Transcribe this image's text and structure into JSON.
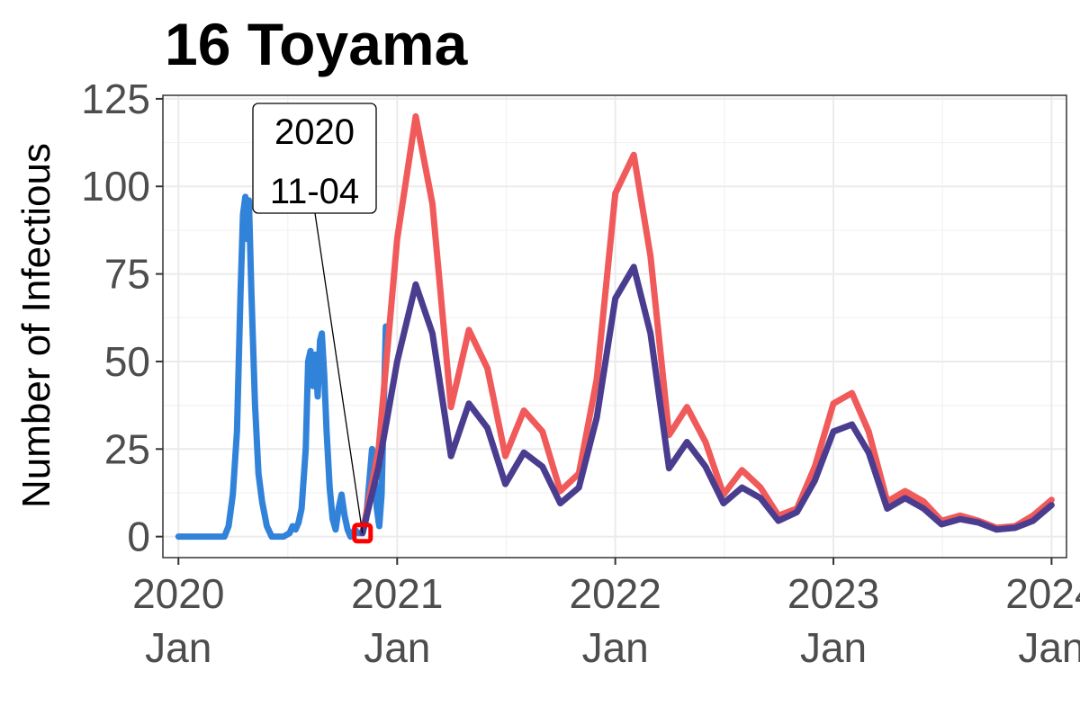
{
  "chart_data": {
    "type": "line",
    "title": "16 Toyama",
    "xlabel": "",
    "ylabel": "Number of Infectious",
    "x_range": [
      "2019-12-06",
      "2024-01-26"
    ],
    "ylim": [
      -6,
      126
    ],
    "yticks": [
      0,
      25,
      50,
      75,
      100,
      125
    ],
    "xticks": [
      {
        "date": "2020-01-01",
        "year": "2020",
        "month": "Jan"
      },
      {
        "date": "2021-01-01",
        "year": "2021",
        "month": "Jan"
      },
      {
        "date": "2022-01-01",
        "year": "2022",
        "month": "Jan"
      },
      {
        "date": "2023-01-01",
        "year": "2023",
        "month": "Jan"
      },
      {
        "date": "2024-01-01",
        "year": "2024",
        "month": "Jan"
      }
    ],
    "grid": true,
    "legend": "none",
    "annotation": {
      "date": "2020-11-04",
      "value": 1,
      "line1": "2020",
      "line2": "11-04",
      "marker_color": "#ff0000"
    },
    "series": [
      {
        "color": "#3182d9",
        "points": [
          [
            "2020-01-01",
            0
          ],
          [
            "2020-02-01",
            0
          ],
          [
            "2020-03-01",
            0
          ],
          [
            "2020-03-18",
            0
          ],
          [
            "2020-03-25",
            3
          ],
          [
            "2020-04-01",
            12
          ],
          [
            "2020-04-08",
            30
          ],
          [
            "2020-04-14",
            70
          ],
          [
            "2020-04-18",
            92
          ],
          [
            "2020-04-22",
            97
          ],
          [
            "2020-04-25",
            85
          ],
          [
            "2020-04-28",
            96
          ],
          [
            "2020-05-02",
            70
          ],
          [
            "2020-05-08",
            38
          ],
          [
            "2020-05-14",
            18
          ],
          [
            "2020-05-20",
            10
          ],
          [
            "2020-05-28",
            3
          ],
          [
            "2020-06-05",
            0
          ],
          [
            "2020-06-25",
            0
          ],
          [
            "2020-07-05",
            1
          ],
          [
            "2020-07-10",
            3
          ],
          [
            "2020-07-15",
            2
          ],
          [
            "2020-07-20",
            4
          ],
          [
            "2020-07-25",
            8
          ],
          [
            "2020-08-01",
            25
          ],
          [
            "2020-08-05",
            50
          ],
          [
            "2020-08-09",
            53
          ],
          [
            "2020-08-13",
            43
          ],
          [
            "2020-08-17",
            52
          ],
          [
            "2020-08-21",
            40
          ],
          [
            "2020-08-25",
            56
          ],
          [
            "2020-08-28",
            58
          ],
          [
            "2020-09-01",
            46
          ],
          [
            "2020-09-05",
            30
          ],
          [
            "2020-09-10",
            14
          ],
          [
            "2020-09-15",
            5
          ],
          [
            "2020-09-20",
            2
          ],
          [
            "2020-09-25",
            8
          ],
          [
            "2020-09-30",
            12
          ],
          [
            "2020-10-05",
            6
          ],
          [
            "2020-10-10",
            2
          ],
          [
            "2020-10-15",
            0
          ],
          [
            "2020-10-22",
            2
          ],
          [
            "2020-10-28",
            1
          ],
          [
            "2020-11-04",
            1
          ],
          [
            "2020-11-10",
            5
          ],
          [
            "2020-11-15",
            15
          ],
          [
            "2020-11-20",
            25
          ],
          [
            "2020-11-24",
            20
          ],
          [
            "2020-11-28",
            8
          ],
          [
            "2020-12-02",
            3
          ],
          [
            "2020-12-06",
            12
          ],
          [
            "2020-12-10",
            40
          ],
          [
            "2020-12-13",
            60
          ]
        ]
      },
      {
        "color": "#f05a5a",
        "points": [
          [
            "2020-11-04",
            1
          ],
          [
            "2020-12-01",
            25
          ],
          [
            "2021-01-01",
            85
          ],
          [
            "2021-02-01",
            120
          ],
          [
            "2021-03-01",
            95
          ],
          [
            "2021-04-01",
            37
          ],
          [
            "2021-05-01",
            59
          ],
          [
            "2021-06-01",
            48
          ],
          [
            "2021-07-01",
            23
          ],
          [
            "2021-08-01",
            36
          ],
          [
            "2021-09-01",
            30
          ],
          [
            "2021-10-01",
            13
          ],
          [
            "2021-11-01",
            18
          ],
          [
            "2021-12-01",
            45
          ],
          [
            "2022-01-01",
            98
          ],
          [
            "2022-02-01",
            109
          ],
          [
            "2022-03-01",
            80
          ],
          [
            "2022-04-01",
            29
          ],
          [
            "2022-05-01",
            37
          ],
          [
            "2022-06-01",
            27
          ],
          [
            "2022-07-01",
            12
          ],
          [
            "2022-08-01",
            19
          ],
          [
            "2022-09-01",
            14
          ],
          [
            "2022-10-01",
            6
          ],
          [
            "2022-11-01",
            8
          ],
          [
            "2022-12-01",
            20
          ],
          [
            "2023-01-01",
            38
          ],
          [
            "2023-02-01",
            41
          ],
          [
            "2023-03-01",
            30
          ],
          [
            "2023-04-01",
            10
          ],
          [
            "2023-05-01",
            13
          ],
          [
            "2023-06-01",
            10
          ],
          [
            "2023-07-01",
            4.5
          ],
          [
            "2023-08-01",
            6
          ],
          [
            "2023-09-01",
            4.5
          ],
          [
            "2023-10-01",
            2.5
          ],
          [
            "2023-11-01",
            3
          ],
          [
            "2023-12-01",
            6
          ],
          [
            "2024-01-01",
            10.5
          ]
        ]
      },
      {
        "color": "#4a3d8f",
        "points": [
          [
            "2020-11-04",
            1
          ],
          [
            "2020-12-01",
            20
          ],
          [
            "2021-01-01",
            50
          ],
          [
            "2021-02-01",
            72
          ],
          [
            "2021-03-01",
            58
          ],
          [
            "2021-04-01",
            23
          ],
          [
            "2021-05-01",
            38
          ],
          [
            "2021-06-01",
            31
          ],
          [
            "2021-07-01",
            15
          ],
          [
            "2021-08-01",
            24
          ],
          [
            "2021-09-01",
            20
          ],
          [
            "2021-10-01",
            9.5
          ],
          [
            "2021-11-01",
            14
          ],
          [
            "2021-12-01",
            34
          ],
          [
            "2022-01-01",
            68
          ],
          [
            "2022-02-01",
            77
          ],
          [
            "2022-03-01",
            58
          ],
          [
            "2022-04-01",
            19.5
          ],
          [
            "2022-05-01",
            27
          ],
          [
            "2022-06-01",
            20
          ],
          [
            "2022-07-01",
            9.5
          ],
          [
            "2022-08-01",
            14
          ],
          [
            "2022-09-01",
            11
          ],
          [
            "2022-10-01",
            4.5
          ],
          [
            "2022-11-01",
            7
          ],
          [
            "2022-12-01",
            16
          ],
          [
            "2023-01-01",
            30
          ],
          [
            "2023-02-01",
            32
          ],
          [
            "2023-03-01",
            24
          ],
          [
            "2023-04-01",
            8
          ],
          [
            "2023-05-01",
            11
          ],
          [
            "2023-06-01",
            8
          ],
          [
            "2023-07-01",
            3.5
          ],
          [
            "2023-08-01",
            5
          ],
          [
            "2023-09-01",
            4
          ],
          [
            "2023-10-01",
            2
          ],
          [
            "2023-11-01",
            2.5
          ],
          [
            "2023-12-01",
            4.5
          ],
          [
            "2024-01-01",
            9
          ]
        ]
      }
    ]
  }
}
